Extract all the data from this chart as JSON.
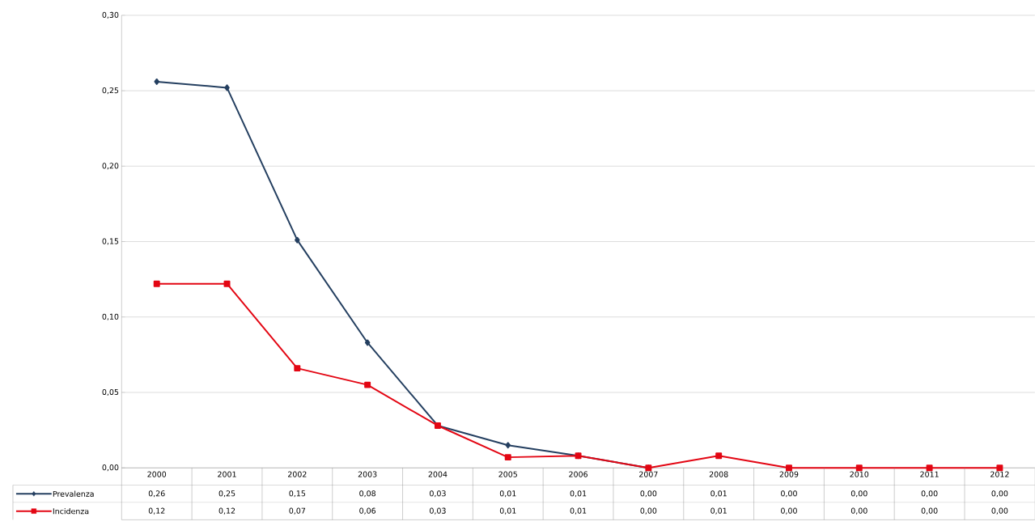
{
  "chart_data": {
    "type": "line",
    "categories": [
      "2000",
      "2001",
      "2002",
      "2003",
      "2004",
      "2005",
      "2006",
      "2007",
      "2008",
      "2009",
      "2010",
      "2011",
      "2012"
    ],
    "series": [
      {
        "name": "Prevalenza",
        "color": "#243f60",
        "marker": "diamond",
        "values": [
          0.256,
          0.252,
          0.151,
          0.083,
          0.028,
          0.015,
          0.008,
          0,
          null,
          null,
          null,
          null,
          null
        ],
        "value_labels": [
          "0,26",
          "0,25",
          "0,15",
          "0,08",
          "0,03",
          "0,01",
          "0,01",
          "0,00",
          "0,01",
          "0,00",
          "0,00",
          "0,00",
          "0,00"
        ]
      },
      {
        "name": "Incidenza",
        "color": "#e30613",
        "marker": "square",
        "values": [
          0.122,
          0.122,
          0.066,
          0.055,
          0.028,
          0.007,
          0.008,
          0,
          0.008,
          0,
          0,
          0,
          0
        ],
        "value_labels": [
          "0,12",
          "0,12",
          "0,07",
          "0,06",
          "0,03",
          "0,01",
          "0,01",
          "0,00",
          "0,01",
          "0,00",
          "0,00",
          "0,00",
          "0,00"
        ]
      }
    ],
    "ylim": [
      0,
      0.3
    ],
    "yticks": [
      {
        "value": 0,
        "label": "0,00"
      },
      {
        "value": 0.05,
        "label": "0,05"
      },
      {
        "value": 0.1,
        "label": "0,10"
      },
      {
        "value": 0.15,
        "label": "0,15"
      },
      {
        "value": 0.2,
        "label": "0,20"
      },
      {
        "value": 0.25,
        "label": "0,25"
      },
      {
        "value": 0.3,
        "label": "0,30"
      }
    ],
    "grid": "y",
    "legend": "bottom left",
    "line_style": "solid"
  }
}
